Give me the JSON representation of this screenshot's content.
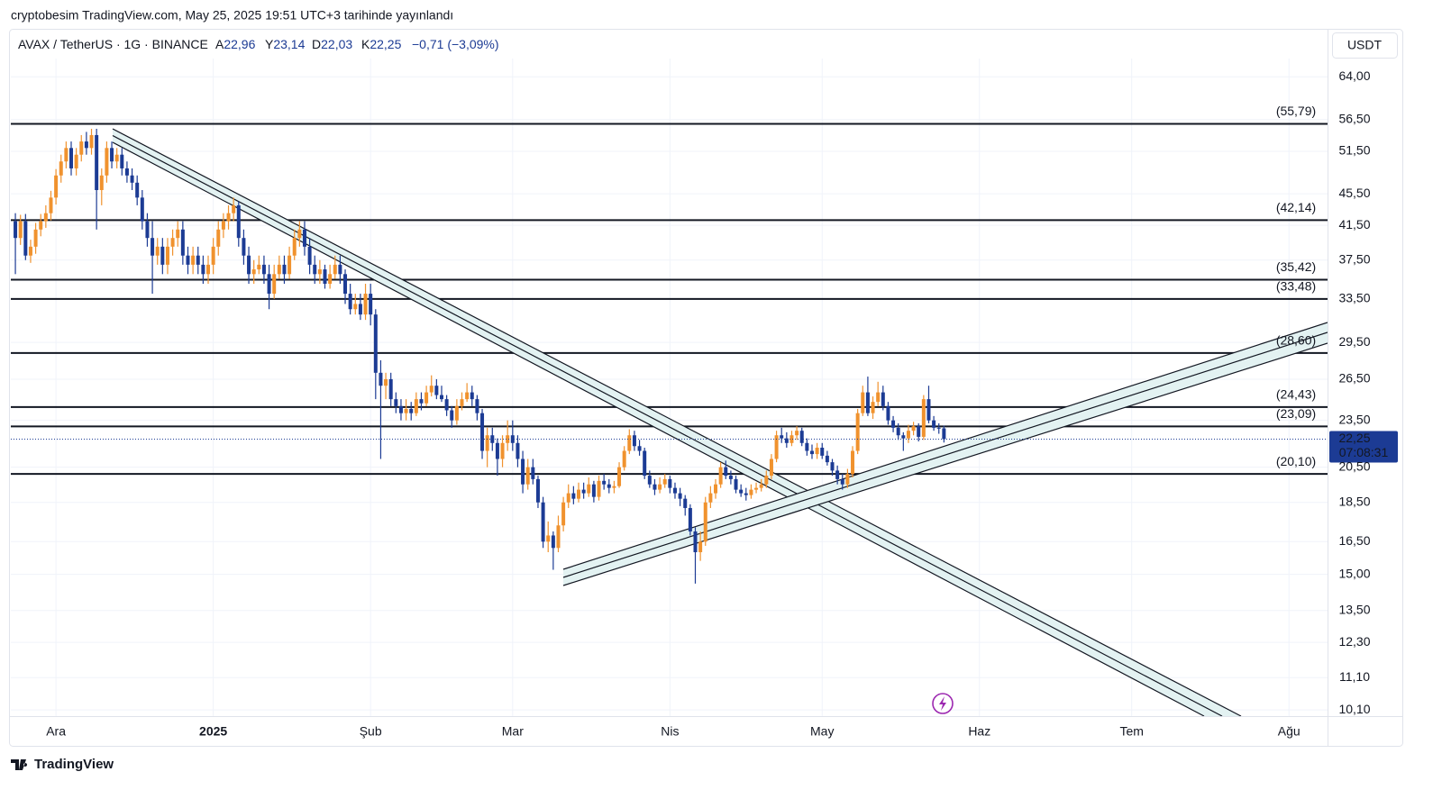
{
  "chart_data": {
    "type": "candlestick",
    "header": "cryptobesim TradingView.com, May 25, 2025 19:51 UTC+3 tarihinde yayınlandı",
    "symbol": "AVAX / TetherUS · 1G · BINANCE",
    "ohlc": [
      {
        "label": "A",
        "value": "22,96"
      },
      {
        "label": "Y",
        "value": "23,14"
      },
      {
        "label": "D",
        "value": "22,03"
      },
      {
        "label": "K",
        "value": "22,25"
      }
    ],
    "change": "−0,71 (−3,09%)",
    "currency": "USDT",
    "brand": "TradingView",
    "log_scale": true,
    "grid": true,
    "up_color": "#f0922e",
    "down_color": "#1c3b94",
    "level_color": "#131722",
    "xlim": [
      -8.9,
      250.6
    ],
    "ylim": [
      9.92,
      67.5
    ],
    "xticks": [
      {
        "value": 0,
        "label": "Ara"
      },
      {
        "value": 31,
        "label": "2025",
        "bold": true
      },
      {
        "value": 62,
        "label": "Şub"
      },
      {
        "value": 90,
        "label": "Mar"
      },
      {
        "value": 121,
        "label": "Nis"
      },
      {
        "value": 151,
        "label": "May"
      },
      {
        "value": 182,
        "label": "Haz"
      },
      {
        "value": 212,
        "label": "Tem"
      },
      {
        "value": 243,
        "label": "Ağu"
      }
    ],
    "yticks": [
      {
        "value": 64,
        "label": "64,00"
      },
      {
        "value": 56.5,
        "label": "56,50"
      },
      {
        "value": 51.5,
        "label": "51,50"
      },
      {
        "value": 45.5,
        "label": "45,50"
      },
      {
        "value": 41.5,
        "label": "41,50"
      },
      {
        "value": 37.5,
        "label": "37,50"
      },
      {
        "value": 33.5,
        "label": "33,50"
      },
      {
        "value": 29.5,
        "label": "29,50"
      },
      {
        "value": 26.5,
        "label": "26,50"
      },
      {
        "value": 23.5,
        "label": "23,50"
      },
      {
        "value": 20.5,
        "label": "20,50"
      },
      {
        "value": 18.5,
        "label": "18,50"
      },
      {
        "value": 16.5,
        "label": "16,50"
      },
      {
        "value": 15,
        "label": "15,00"
      },
      {
        "value": 13.5,
        "label": "13,50"
      },
      {
        "value": 12.3,
        "label": "12,30"
      },
      {
        "value": 11.1,
        "label": "11,10"
      },
      {
        "value": 10.1,
        "label": "10,10"
      }
    ],
    "levels": [
      {
        "value": 55.79,
        "label": "(55,79)"
      },
      {
        "value": 42.14,
        "label": "(42,14)"
      },
      {
        "value": 35.42,
        "label": "(35,42)"
      },
      {
        "value": 33.48,
        "label": "(33,48)"
      },
      {
        "value": 28.6,
        "label": "(28,60)"
      },
      {
        "value": 24.43,
        "label": "(24,43)"
      },
      {
        "value": 23.09,
        "label": "(23,09)"
      },
      {
        "value": 20.1,
        "label": "(20,10)"
      }
    ],
    "last_price": {
      "value": 22.25,
      "label": "22,25",
      "countdown": "07:08:31"
    },
    "x": [
      -8,
      -7,
      -6,
      -5,
      -4,
      -3,
      -2,
      -1,
      0,
      1,
      2,
      3,
      4,
      5,
      6,
      7,
      8,
      9,
      10,
      11,
      12,
      13,
      14,
      15,
      16,
      17,
      18,
      19,
      20,
      21,
      22,
      23,
      24,
      25,
      26,
      27,
      28,
      29,
      30,
      31,
      32,
      33,
      34,
      35,
      36,
      37,
      38,
      39,
      40,
      41,
      42,
      43,
      44,
      45,
      46,
      47,
      48,
      49,
      50,
      51,
      52,
      53,
      54,
      55,
      56,
      57,
      58,
      59,
      60,
      61,
      62,
      63,
      64,
      65,
      66,
      67,
      68,
      69,
      70,
      71,
      72,
      73,
      74,
      75,
      76,
      77,
      78,
      79,
      80,
      81,
      82,
      83,
      84,
      85,
      86,
      87,
      88,
      89,
      90,
      91,
      92,
      93,
      94,
      95,
      96,
      97,
      98,
      99,
      100,
      101,
      102,
      103,
      104,
      105,
      106,
      107,
      108,
      109,
      110,
      111,
      112,
      113,
      114,
      115,
      116,
      117,
      118,
      119,
      120,
      121,
      122,
      123,
      124,
      125,
      126,
      127,
      128,
      129,
      130,
      131,
      132,
      133,
      134,
      135,
      136,
      137,
      138,
      139,
      140,
      141,
      142,
      143,
      144,
      145,
      146,
      147,
      148,
      149,
      150,
      151,
      152,
      153,
      154,
      155,
      156,
      157,
      158,
      159,
      160,
      161,
      162,
      163,
      164,
      165,
      166,
      167,
      168,
      169,
      170,
      171,
      172,
      173,
      174,
      175
    ],
    "candles": [
      [
        42,
        43,
        36,
        40
      ],
      [
        40,
        42.8,
        39.2,
        42
      ],
      [
        42,
        42.9,
        37.5,
        38
      ],
      [
        38,
        39.8,
        37.2,
        39
      ],
      [
        39,
        41.8,
        38.2,
        41
      ],
      [
        41,
        42.9,
        40.2,
        42
      ],
      [
        42,
        44,
        41.2,
        43
      ],
      [
        43,
        45.9,
        42.1,
        45
      ],
      [
        45,
        48.9,
        44.1,
        48
      ],
      [
        48,
        51,
        47,
        50
      ],
      [
        50,
        53,
        49,
        52
      ],
      [
        52,
        53,
        48,
        49
      ],
      [
        49,
        52,
        48,
        51
      ],
      [
        51,
        54,
        50,
        53
      ],
      [
        53,
        54.5,
        51,
        52
      ],
      [
        52,
        55,
        51,
        54
      ],
      [
        54,
        55,
        41,
        46
      ],
      [
        46,
        49,
        44,
        48
      ],
      [
        48,
        53,
        47,
        52
      ],
      [
        52,
        53,
        49,
        50
      ],
      [
        50,
        52,
        49,
        51
      ],
      [
        51,
        52,
        48,
        49
      ],
      [
        49,
        50,
        47,
        48
      ],
      [
        48,
        49,
        46,
        47
      ],
      [
        47,
        48,
        44,
        45
      ],
      [
        45,
        46,
        41,
        42
      ],
      [
        42,
        43,
        39,
        40
      ],
      [
        40,
        42,
        34,
        38
      ],
      [
        38,
        40,
        37,
        39
      ],
      [
        39,
        40,
        36,
        37
      ],
      [
        37,
        40,
        36,
        39
      ],
      [
        39,
        41,
        38,
        40
      ],
      [
        40,
        42,
        39,
        41
      ],
      [
        41,
        42,
        37,
        38
      ],
      [
        38,
        39,
        36,
        37
      ],
      [
        37,
        39,
        36,
        38
      ],
      [
        38,
        39,
        36,
        37
      ],
      [
        37,
        38,
        35,
        36
      ],
      [
        36,
        38,
        35,
        37
      ],
      [
        37,
        40,
        36,
        39
      ],
      [
        39,
        42,
        38,
        41
      ],
      [
        41,
        43,
        40,
        42
      ],
      [
        42,
        44,
        41,
        43
      ],
      [
        43,
        45,
        42,
        44
      ],
      [
        44,
        44.5,
        39,
        40
      ],
      [
        40,
        41,
        37,
        38
      ],
      [
        38,
        39,
        35,
        36
      ],
      [
        36,
        37.5,
        35,
        36.5
      ],
      [
        36.5,
        38,
        36,
        37
      ],
      [
        37,
        38,
        35,
        36
      ],
      [
        36,
        37,
        32.5,
        34
      ],
      [
        34,
        37,
        33.5,
        36
      ],
      [
        36,
        38,
        35.5,
        37
      ],
      [
        37,
        38,
        35,
        36
      ],
      [
        36,
        39,
        35.5,
        38
      ],
      [
        38,
        41,
        37.5,
        40
      ],
      [
        40,
        42,
        39,
        41
      ],
      [
        41,
        42,
        38,
        39
      ],
      [
        39,
        40,
        36,
        37
      ],
      [
        37,
        38,
        35,
        36
      ],
      [
        36,
        37.5,
        35,
        36.5
      ],
      [
        36.5,
        37,
        34.5,
        35
      ],
      [
        35,
        37,
        34.5,
        36
      ],
      [
        36,
        38,
        35.5,
        37
      ],
      [
        37,
        38,
        35,
        36
      ],
      [
        36,
        36.5,
        33,
        34
      ],
      [
        34,
        35,
        32,
        32.5
      ],
      [
        32.5,
        34,
        32,
        33
      ],
      [
        33,
        34,
        31.5,
        32
      ],
      [
        32,
        35,
        31.5,
        34
      ],
      [
        34,
        35,
        31,
        32
      ],
      [
        32,
        32.5,
        25,
        27
      ],
      [
        27,
        28,
        21,
        26
      ],
      [
        26,
        27,
        25,
        26.5
      ],
      [
        26.5,
        27,
        24.5,
        25
      ],
      [
        25,
        25.5,
        24,
        24.5
      ],
      [
        24.5,
        25,
        23.5,
        24
      ],
      [
        24,
        25,
        23.5,
        24.3
      ],
      [
        24.3,
        24.8,
        23.5,
        24
      ],
      [
        24,
        25.5,
        23.8,
        25
      ],
      [
        25,
        25.5,
        24.2,
        24.7
      ],
      [
        24.7,
        26,
        24.5,
        25.5
      ],
      [
        25.5,
        26.8,
        25.2,
        26
      ],
      [
        26,
        26.5,
        25,
        25.3
      ],
      [
        25.3,
        26,
        24.8,
        25
      ],
      [
        25,
        25.3,
        23.8,
        24.2
      ],
      [
        24.2,
        24.5,
        23,
        23.5
      ],
      [
        23.5,
        25,
        23.2,
        24.5
      ],
      [
        24.5,
        25.5,
        24.2,
        25
      ],
      [
        25,
        26.2,
        24.8,
        25.5
      ],
      [
        25.5,
        26,
        24.5,
        25
      ],
      [
        25,
        25.3,
        23.5,
        24
      ],
      [
        24,
        24.3,
        21,
        21.5
      ],
      [
        21.5,
        23,
        20.5,
        22.5
      ],
      [
        22.5,
        23,
        21.5,
        22
      ],
      [
        22,
        22.3,
        20,
        21
      ],
      [
        21,
        22.5,
        20.5,
        22
      ],
      [
        22,
        23.5,
        21.5,
        22.5
      ],
      [
        22.5,
        23.5,
        21.5,
        22
      ],
      [
        22,
        22.5,
        20.5,
        21
      ],
      [
        21,
        21.5,
        19,
        19.5
      ],
      [
        19.5,
        21,
        19.2,
        20.5
      ],
      [
        20.5,
        21,
        19.5,
        19.8
      ],
      [
        19.8,
        20,
        18.2,
        18.5
      ],
      [
        18.5,
        18.8,
        16.2,
        16.5
      ],
      [
        16.5,
        17.5,
        16,
        16.8
      ],
      [
        16.8,
        17,
        15.2,
        16.2
      ],
      [
        16.2,
        17.8,
        16,
        17.3
      ],
      [
        17.3,
        18.8,
        17,
        18.5
      ],
      [
        18.5,
        19.5,
        18.2,
        19
      ],
      [
        19,
        19.4,
        18.4,
        18.7
      ],
      [
        18.7,
        19.6,
        18.5,
        19.2
      ],
      [
        19.2,
        19.6,
        18.7,
        19
      ],
      [
        19,
        19.9,
        18.8,
        19.5
      ],
      [
        19.5,
        19.7,
        18.5,
        18.8
      ],
      [
        18.8,
        20,
        18.6,
        19.7
      ],
      [
        19.7,
        20.1,
        19.2,
        19.5
      ],
      [
        19.5,
        19.8,
        19,
        19.3
      ],
      [
        19.3,
        19.7,
        19,
        19.4
      ],
      [
        19.4,
        20.8,
        19.3,
        20.5
      ],
      [
        20.5,
        21.8,
        20.3,
        21.5
      ],
      [
        21.5,
        22.9,
        21.3,
        22.5
      ],
      [
        22.5,
        22.8,
        21.5,
        21.8
      ],
      [
        21.8,
        22.2,
        21.2,
        21.5
      ],
      [
        21.5,
        21.7,
        19.8,
        20
      ],
      [
        20,
        20.3,
        19.3,
        19.5
      ],
      [
        19.5,
        19.8,
        18.9,
        19.2
      ],
      [
        19.2,
        19.9,
        19,
        19.5
      ],
      [
        19.5,
        20.1,
        19.3,
        19.8
      ],
      [
        19.8,
        20,
        19,
        19.3
      ],
      [
        19.3,
        19.6,
        18.7,
        19
      ],
      [
        19,
        19.3,
        18.3,
        18.7
      ],
      [
        18.7,
        18.9,
        17.8,
        18.2
      ],
      [
        18.2,
        18.4,
        16.8,
        17
      ],
      [
        17,
        17.2,
        14.6,
        16
      ],
      [
        16,
        17,
        15.6,
        16.5
      ],
      [
        16.5,
        18.8,
        16.3,
        18.5
      ],
      [
        18.5,
        19.4,
        18.2,
        19
      ],
      [
        19,
        19.8,
        18.7,
        19.5
      ],
      [
        19.5,
        20.8,
        19.3,
        20.5
      ],
      [
        20.5,
        20.9,
        19.8,
        20
      ],
      [
        20,
        20.3,
        19.5,
        19.8
      ],
      [
        19.8,
        20,
        19,
        19.2
      ],
      [
        19.2,
        19.5,
        18.8,
        19
      ],
      [
        19,
        19.3,
        18.6,
        18.9
      ],
      [
        18.9,
        19.5,
        18.7,
        19.2
      ],
      [
        19.2,
        19.6,
        19,
        19.3
      ],
      [
        19.3,
        19.8,
        19.1,
        19.5
      ],
      [
        19.5,
        20.3,
        19.3,
        20
      ],
      [
        20,
        21.3,
        19.8,
        21
      ],
      [
        21,
        22.8,
        20.8,
        22.5
      ],
      [
        22.5,
        23,
        22,
        22.3
      ],
      [
        22.3,
        22.7,
        21.7,
        22
      ],
      [
        22,
        22.8,
        21.8,
        22.5
      ],
      [
        22.5,
        23.1,
        22.2,
        22.8
      ],
      [
        22.8,
        23,
        21.8,
        22
      ],
      [
        22,
        22.3,
        21.2,
        21.5
      ],
      [
        21.5,
        21.9,
        21,
        21.3
      ],
      [
        21.3,
        22,
        21,
        21.7
      ],
      [
        21.7,
        22,
        21,
        21.2
      ],
      [
        21.2,
        21.5,
        20.6,
        20.8
      ],
      [
        20.8,
        21,
        20,
        20.3
      ],
      [
        20.3,
        20.6,
        19.5,
        19.8
      ],
      [
        19.8,
        20.1,
        19.2,
        19.5
      ],
      [
        19.5,
        20.4,
        19.3,
        20.1
      ],
      [
        20.1,
        21.8,
        19.9,
        21.5
      ],
      [
        21.5,
        24.3,
        21.3,
        24
      ],
      [
        24,
        26,
        23.8,
        25.5
      ],
      [
        25.5,
        26.7,
        23.8,
        24
      ],
      [
        24,
        25.2,
        23.6,
        24.8
      ],
      [
        24.8,
        26.3,
        24.5,
        25.5
      ],
      [
        25.5,
        26,
        24.2,
        24.5
      ],
      [
        24.5,
        24.8,
        23.2,
        23.5
      ],
      [
        23.5,
        23.8,
        22.7,
        23
      ],
      [
        23,
        23.3,
        22.2,
        22.5
      ],
      [
        22.5,
        22.7,
        21.5,
        22.3
      ],
      [
        22.3,
        23.2,
        22,
        22.8
      ],
      [
        22.8,
        23.4,
        22.5,
        23.1
      ],
      [
        23.1,
        23.3,
        22.1,
        22.4
      ],
      [
        22.4,
        25.3,
        22.2,
        25
      ],
      [
        25,
        26,
        23.3,
        23.5
      ],
      [
        23.5,
        23.8,
        22.8,
        23
      ],
      [
        23,
        23.3,
        22.6,
        22.96
      ],
      [
        22.96,
        23.14,
        22.03,
        22.25
      ]
    ]
  }
}
